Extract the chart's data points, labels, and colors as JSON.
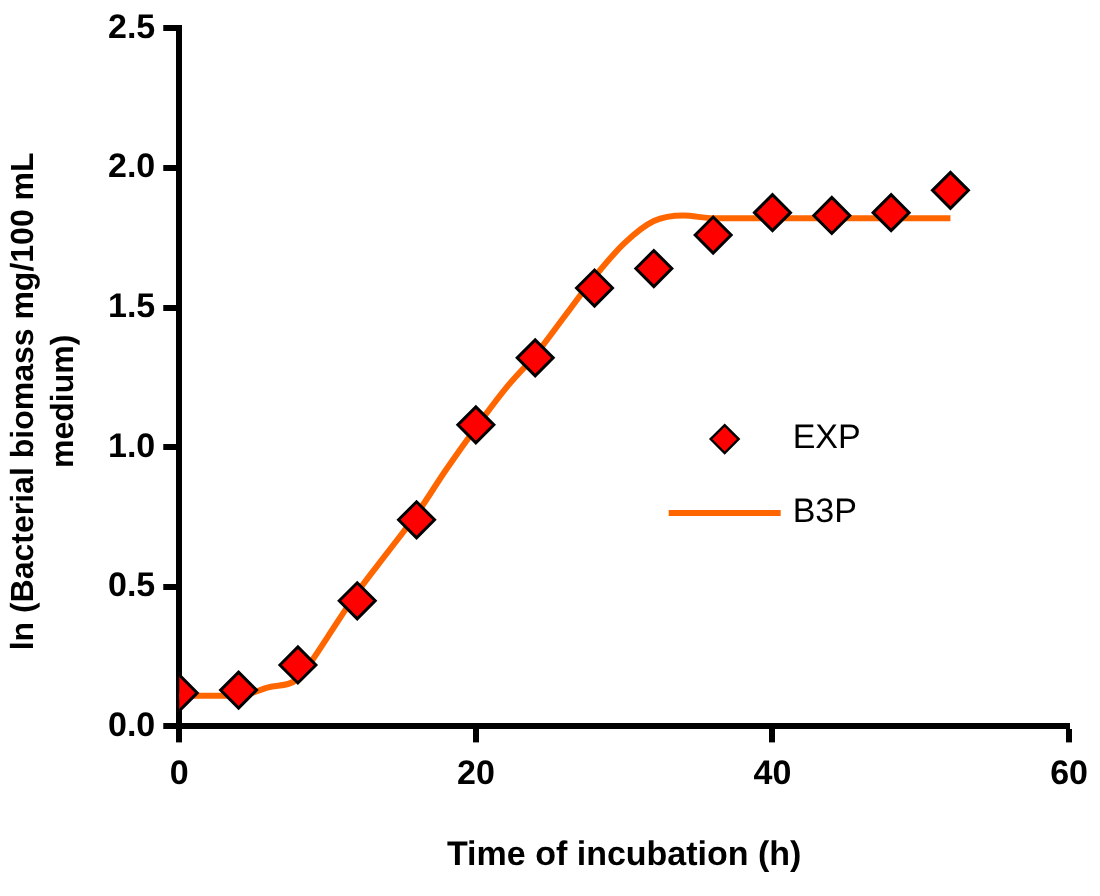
{
  "chart_data": {
    "type": "scatter",
    "xlabel": "Time of incubation (h)",
    "ylabel": "ln (Bacterial biomass mg/100 mL medium)",
    "xlim": [
      0,
      60
    ],
    "xticks": [
      0,
      20,
      40,
      60
    ],
    "ylim": [
      0,
      2.5
    ],
    "yticks": [
      {
        "value": 0,
        "label": "0.0"
      },
      0.5,
      {
        "value": 1,
        "label": "1.0"
      },
      1.5,
      {
        "value": 2,
        "label": "2.0"
      },
      2.5
    ],
    "grid": false,
    "legend": "right",
    "marker": "diamond",
    "series": [
      {
        "name": "EXP",
        "color": "#ff0000",
        "x": [
          0,
          4,
          8,
          12,
          16,
          20,
          24,
          28,
          32,
          36,
          40,
          44,
          48,
          52
        ],
        "values": [
          0.12,
          0.13,
          0.22,
          0.45,
          0.74,
          1.08,
          1.32,
          1.57,
          1.64,
          1.76,
          1.84,
          1.83,
          1.84,
          1.92
        ]
      },
      {
        "name": "B3P",
        "type": "line",
        "color": "#ff6600",
        "marker": "none",
        "line_style": "solid",
        "x": [
          0,
          4,
          6,
          8,
          9,
          10,
          12,
          14,
          16,
          18,
          20,
          22,
          24,
          26,
          28,
          30,
          32,
          34,
          36,
          40,
          52
        ],
        "values": [
          0.11,
          0.11,
          0.14,
          0.17,
          0.24,
          0.32,
          0.48,
          0.62,
          0.76,
          0.92,
          1.07,
          1.21,
          1.33,
          1.47,
          1.61,
          1.73,
          1.81,
          1.83,
          1.82,
          1.82,
          1.82
        ]
      }
    ]
  }
}
